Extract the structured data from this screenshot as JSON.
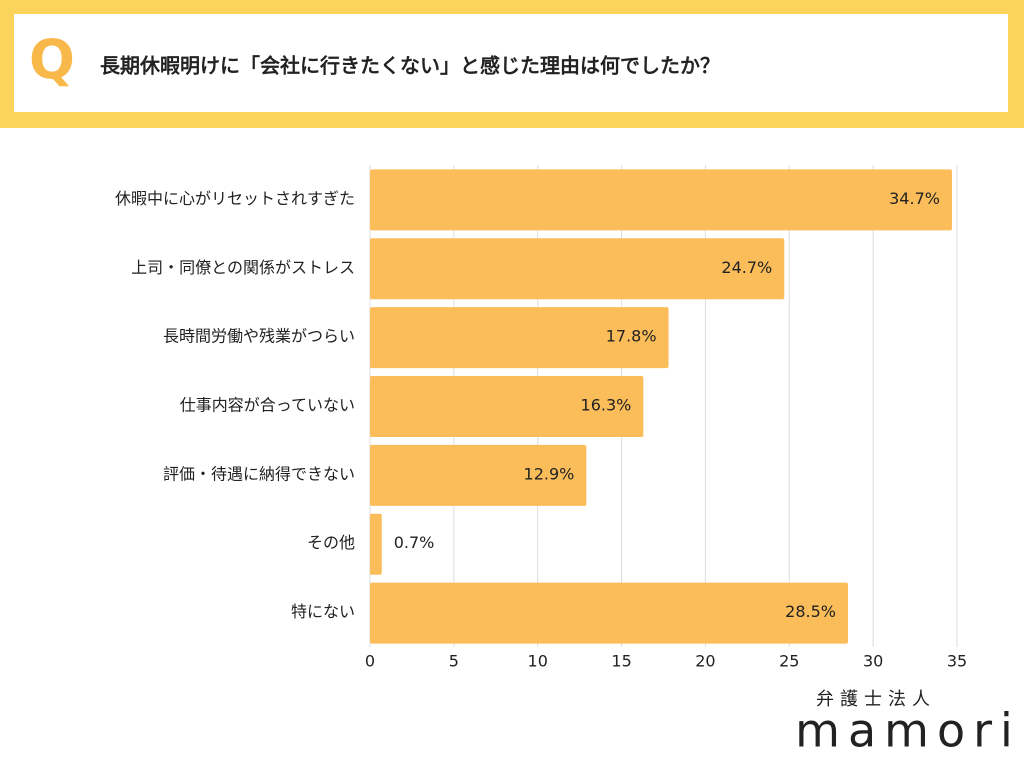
{
  "header": {
    "mark": "Q"
  },
  "chart_data": {
    "type": "barh",
    "title": "長期休暇明けに「会社に行きたくない」と感じた理由は何でしたか？",
    "categories": [
      "休暇中に心がリセットされすぎた",
      "上司・同僚との関係がストレス",
      "長時間労働や残業がつらい",
      "仕事内容が合っていない",
      "評価・待遇に納得できない",
      "その他",
      "特にない"
    ],
    "values": [
      34.7,
      24.7,
      17.8,
      16.3,
      12.9,
      0.7,
      28.5
    ],
    "value_labels": [
      "34.7%",
      "24.7%",
      "17.8%",
      "16.3%",
      "12.9%",
      "0.7%",
      "28.5%"
    ],
    "color": "#fbbd5a",
    "xlim": [
      0,
      35
    ],
    "xticks": [
      0,
      5,
      10,
      15,
      20,
      25,
      30,
      35
    ],
    "grid": true
  },
  "branding": {
    "org": "弁護士法人",
    "name": "mamori"
  }
}
